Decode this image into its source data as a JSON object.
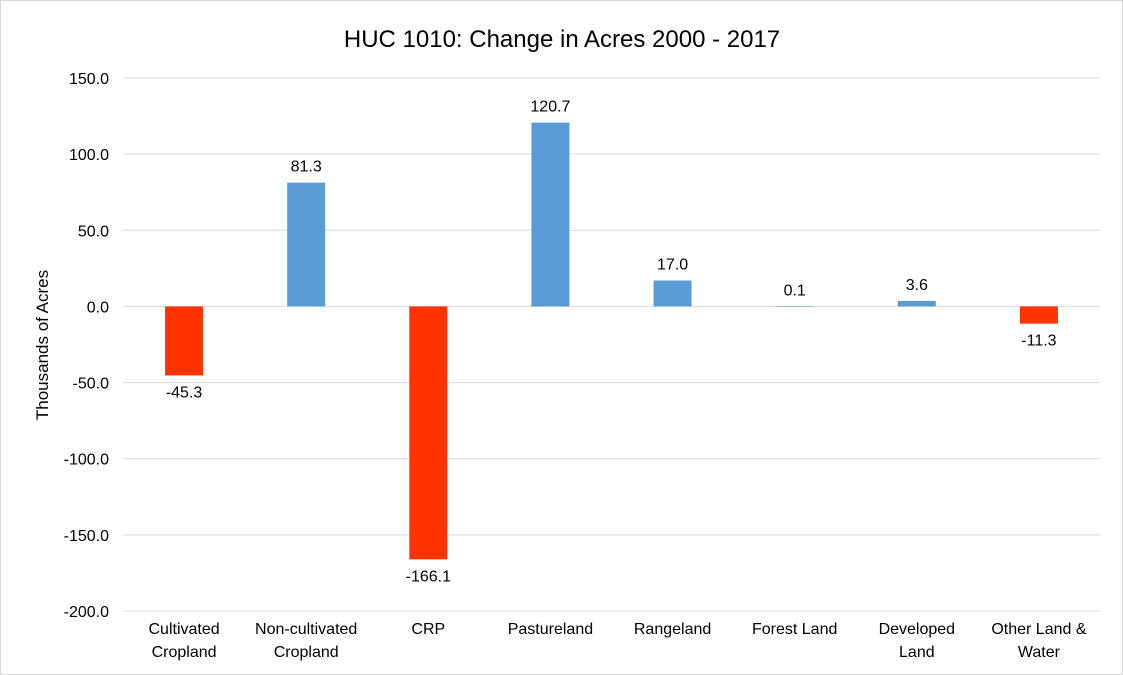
{
  "chart_data": {
    "type": "bar",
    "title": "HUC 1010: Change in Acres 2000 - 2017",
    "xlabel": "",
    "ylabel": "Thousands of Acres",
    "ylim": [
      -200,
      150
    ],
    "ytick_step": 50,
    "ytick_labels": [
      "150.0",
      "100.0",
      "50.0",
      "0.0",
      "-50.0",
      "-100.0",
      "-150.0",
      "-200.0"
    ],
    "grid": true,
    "legend": "none",
    "categories": [
      [
        "Cultivated",
        "Cropland"
      ],
      [
        "Non-cultivated",
        "Cropland"
      ],
      [
        "CRP"
      ],
      [
        "Pastureland"
      ],
      [
        "Rangeland"
      ],
      [
        "Forest Land"
      ],
      [
        "Developed",
        "Land"
      ],
      [
        "Other Land &",
        "Water"
      ]
    ],
    "values": [
      -45.3,
      81.3,
      -166.1,
      120.7,
      17.0,
      0.1,
      3.6,
      -11.3
    ],
    "data_labels": [
      "-45.3",
      "81.3",
      "-166.1",
      "120.7",
      "17.0",
      "0.1",
      "3.6",
      "-11.3"
    ],
    "colors": {
      "positive": "#5B9BD5",
      "negative": "#FF3300",
      "grid": "#D9D9D9",
      "text": "#000000"
    }
  }
}
